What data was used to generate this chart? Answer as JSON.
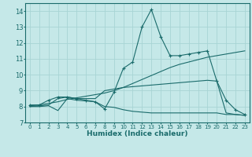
{
  "xlabel": "Humidex (Indice chaleur)",
  "xlim": [
    -0.5,
    23.5
  ],
  "ylim": [
    7.0,
    14.5
  ],
  "yticks": [
    7,
    8,
    9,
    10,
    11,
    12,
    13,
    14
  ],
  "xticks": [
    0,
    1,
    2,
    3,
    4,
    5,
    6,
    7,
    8,
    9,
    10,
    11,
    12,
    13,
    14,
    15,
    16,
    17,
    18,
    19,
    20,
    21,
    22,
    23
  ],
  "bg_color": "#c5e8e8",
  "line_color": "#1a6b6b",
  "grid_color": "#a8d4d4",
  "line1_y": [
    8.1,
    8.1,
    8.4,
    8.6,
    8.6,
    8.5,
    8.4,
    8.3,
    7.85,
    8.9,
    10.4,
    10.8,
    13.0,
    14.1,
    12.4,
    11.2,
    11.2,
    11.3,
    11.4,
    11.5,
    9.6,
    8.4,
    7.8,
    7.5
  ],
  "line2_y": [
    8.05,
    8.1,
    8.2,
    8.3,
    8.45,
    8.55,
    8.65,
    8.75,
    8.85,
    9.0,
    9.2,
    9.45,
    9.7,
    9.95,
    10.2,
    10.45,
    10.65,
    10.8,
    10.95,
    11.1,
    11.2,
    11.3,
    11.4,
    11.5
  ],
  "line3_y": [
    8.0,
    8.0,
    8.05,
    7.75,
    8.5,
    8.4,
    8.35,
    8.3,
    8.0,
    7.95,
    7.8,
    7.7,
    7.65,
    7.6,
    7.6,
    7.6,
    7.6,
    7.6,
    7.6,
    7.6,
    7.6,
    7.5,
    7.5,
    7.45
  ],
  "line4_y": [
    8.0,
    8.05,
    8.1,
    8.5,
    8.6,
    8.5,
    8.5,
    8.5,
    9.0,
    9.1,
    9.2,
    9.25,
    9.3,
    9.35,
    9.4,
    9.45,
    9.5,
    9.55,
    9.6,
    9.65,
    9.6,
    7.6,
    7.5,
    7.45
  ]
}
